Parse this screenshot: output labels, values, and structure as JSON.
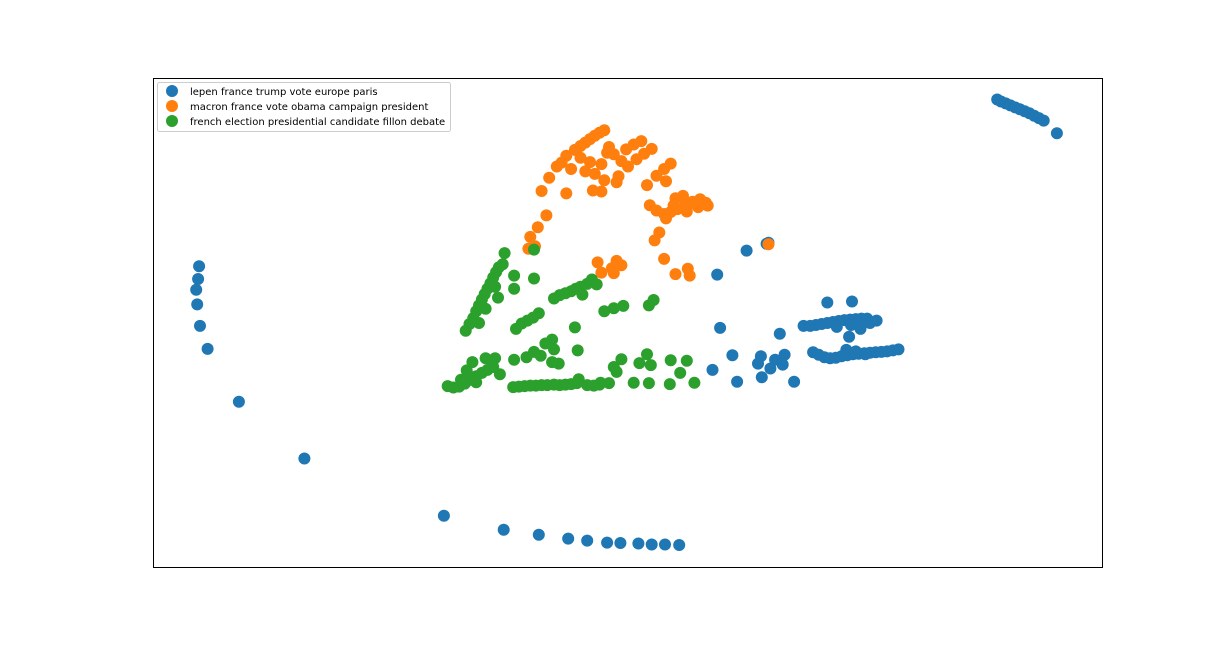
{
  "chart_data": {
    "type": "scatter",
    "title": "",
    "xlabel": "",
    "ylabel": "",
    "grid": false,
    "show_ticks": false,
    "legend_position": "top-left",
    "xlim": [
      0,
      100
    ],
    "ylim": [
      0,
      100
    ],
    "series": [
      {
        "name": "lepen france trump vote europe paris",
        "color": "#1f77b4",
        "points": [
          [
            88.9,
            95.7
          ],
          [
            89.3,
            95.3
          ],
          [
            89.8,
            94.9
          ],
          [
            90.3,
            94.5
          ],
          [
            90.8,
            94.1
          ],
          [
            91.3,
            93.7
          ],
          [
            91.8,
            93.3
          ],
          [
            92.3,
            92.9
          ],
          [
            92.8,
            92.4
          ],
          [
            93.3,
            91.9
          ],
          [
            93.8,
            91.4
          ],
          [
            95.2,
            88.8
          ],
          [
            4.8,
            61.6
          ],
          [
            4.7,
            59.0
          ],
          [
            4.5,
            56.8
          ],
          [
            4.6,
            53.8
          ],
          [
            4.9,
            49.4
          ],
          [
            5.7,
            44.7
          ],
          [
            9.0,
            33.9
          ],
          [
            15.9,
            22.3
          ],
          [
            30.6,
            10.6
          ],
          [
            36.9,
            7.7
          ],
          [
            40.6,
            6.7
          ],
          [
            43.7,
            5.9
          ],
          [
            45.7,
            5.5
          ],
          [
            47.8,
            5.1
          ],
          [
            49.2,
            5.0
          ],
          [
            51.1,
            4.9
          ],
          [
            52.5,
            4.7
          ],
          [
            53.9,
            4.7
          ],
          [
            55.4,
            4.6
          ],
          [
            59.4,
            59.9
          ],
          [
            62.5,
            64.8
          ],
          [
            64.6,
            66.2
          ],
          [
            64.8,
            66.4
          ],
          [
            58.9,
            40.4
          ],
          [
            59.7,
            49.0
          ],
          [
            61.0,
            43.4
          ],
          [
            64.0,
            43.2
          ],
          [
            66.0,
            47.8
          ],
          [
            63.7,
            41.7
          ],
          [
            65.0,
            40.7
          ],
          [
            61.5,
            38.0
          ],
          [
            64.1,
            38.9
          ],
          [
            67.5,
            38.0
          ],
          [
            71.0,
            54.2
          ],
          [
            73.6,
            54.4
          ],
          [
            73.3,
            47.2
          ],
          [
            68.5,
            49.4
          ],
          [
            69.2,
            49.4
          ],
          [
            69.8,
            49.6
          ],
          [
            70.4,
            49.8
          ],
          [
            71.0,
            50.0
          ],
          [
            71.6,
            50.2
          ],
          [
            72.2,
            50.4
          ],
          [
            72.8,
            50.6
          ],
          [
            73.4,
            50.7
          ],
          [
            74.0,
            50.8
          ],
          [
            74.6,
            50.9
          ],
          [
            75.2,
            50.9
          ],
          [
            72.0,
            49.2
          ],
          [
            73.5,
            49.6
          ],
          [
            74.5,
            48.8
          ],
          [
            75.5,
            50.0
          ],
          [
            76.2,
            50.5
          ],
          [
            69.5,
            44.0
          ],
          [
            70.1,
            43.5
          ],
          [
            70.7,
            43.0
          ],
          [
            71.3,
            42.8
          ],
          [
            71.9,
            42.9
          ],
          [
            72.5,
            43.2
          ],
          [
            73.1,
            43.4
          ],
          [
            73.7,
            43.6
          ],
          [
            74.3,
            43.7
          ],
          [
            74.9,
            43.8
          ],
          [
            75.5,
            43.9
          ],
          [
            76.1,
            44.0
          ],
          [
            76.7,
            44.1
          ],
          [
            77.3,
            44.2
          ],
          [
            77.9,
            44.4
          ],
          [
            78.5,
            44.6
          ],
          [
            73.0,
            44.5
          ],
          [
            74.0,
            44.2
          ],
          [
            75.0,
            43.6
          ],
          [
            66.5,
            43.5
          ],
          [
            65.5,
            42.5
          ],
          [
            66.3,
            41.5
          ]
        ]
      },
      {
        "name": "macron france vote obama campaign president",
        "color": "#ff7f0e",
        "points": [
          [
            44.4,
            85.4
          ],
          [
            45.0,
            86.2
          ],
          [
            45.5,
            86.9
          ],
          [
            46.0,
            87.6
          ],
          [
            46.5,
            88.3
          ],
          [
            47.0,
            88.9
          ],
          [
            47.5,
            89.4
          ],
          [
            43.0,
            82.8
          ],
          [
            42.5,
            82.0
          ],
          [
            43.5,
            84.2
          ],
          [
            44.0,
            81.5
          ],
          [
            45.5,
            81.0
          ],
          [
            46.5,
            80.5
          ],
          [
            47.2,
            82.5
          ],
          [
            46.0,
            82.9
          ],
          [
            45.0,
            83.8
          ],
          [
            47.8,
            84.8
          ],
          [
            39.7,
            67.6
          ],
          [
            40.5,
            69.6
          ],
          [
            41.4,
            72.0
          ],
          [
            40.2,
            65.7
          ],
          [
            39.5,
            65.2
          ],
          [
            40.9,
            77.0
          ],
          [
            41.7,
            79.7
          ],
          [
            43.5,
            76.5
          ],
          [
            46.3,
            77.1
          ],
          [
            47.2,
            76.9
          ],
          [
            47.5,
            79.2
          ],
          [
            48.8,
            78.8
          ],
          [
            48.0,
            86.0
          ],
          [
            48.5,
            84.5
          ],
          [
            49.3,
            83.1
          ],
          [
            49.0,
            80.0
          ],
          [
            49.8,
            85.5
          ],
          [
            50.6,
            86.5
          ],
          [
            51.4,
            87.2
          ],
          [
            50.0,
            82.0
          ],
          [
            50.9,
            83.5
          ],
          [
            51.7,
            84.6
          ],
          [
            52.5,
            85.6
          ],
          [
            52.0,
            78.2
          ],
          [
            53.0,
            80.1
          ],
          [
            53.8,
            81.5
          ],
          [
            54.5,
            82.6
          ],
          [
            54.0,
            79.0
          ],
          [
            52.3,
            74.1
          ],
          [
            53.0,
            73.0
          ],
          [
            53.8,
            72.3
          ],
          [
            54.5,
            72.7
          ],
          [
            55.2,
            73.3
          ],
          [
            56.0,
            74.1
          ],
          [
            56.8,
            74.8
          ],
          [
            57.6,
            75.3
          ],
          [
            55.0,
            75.5
          ],
          [
            55.8,
            76.0
          ],
          [
            56.6,
            74.5
          ],
          [
            57.4,
            73.7
          ],
          [
            58.2,
            74.6
          ],
          [
            54.0,
            71.4
          ],
          [
            56.2,
            72.8
          ],
          [
            54.8,
            74.0
          ],
          [
            53.3,
            68.5
          ],
          [
            52.8,
            66.9
          ],
          [
            53.8,
            63.1
          ],
          [
            55.0,
            60.0
          ],
          [
            56.3,
            61.1
          ],
          [
            56.5,
            59.7
          ],
          [
            58.4,
            74.0
          ],
          [
            46.8,
            62.4
          ],
          [
            47.2,
            60.3
          ],
          [
            48.3,
            61.2
          ],
          [
            48.8,
            62.7
          ],
          [
            49.3,
            61.8
          ],
          [
            48.5,
            60.2
          ],
          [
            64.8,
            66.1
          ]
        ]
      },
      {
        "name": "french election presidential candidate fillon debate",
        "color": "#2ca02c",
        "points": [
          [
            32.9,
            48.4
          ],
          [
            33.3,
            49.8
          ],
          [
            33.7,
            51.0
          ],
          [
            34.0,
            52.4
          ],
          [
            34.3,
            53.6
          ],
          [
            34.6,
            54.8
          ],
          [
            34.9,
            55.9
          ],
          [
            35.2,
            57.0
          ],
          [
            35.5,
            58.1
          ],
          [
            35.8,
            59.3
          ],
          [
            36.1,
            60.4
          ],
          [
            36.4,
            61.4
          ],
          [
            36.8,
            62.0
          ],
          [
            34.3,
            50.0
          ],
          [
            35.0,
            52.9
          ],
          [
            36.0,
            57.4
          ],
          [
            38.0,
            59.7
          ],
          [
            38.0,
            57.0
          ],
          [
            36.3,
            55.2
          ],
          [
            37.0,
            64.3
          ],
          [
            40.1,
            59.1
          ],
          [
            40.1,
            65.0
          ],
          [
            31.0,
            37.1
          ],
          [
            31.6,
            36.8
          ],
          [
            32.2,
            37.0
          ],
          [
            32.8,
            37.6
          ],
          [
            33.4,
            38.4
          ],
          [
            34.0,
            39.1
          ],
          [
            34.6,
            39.8
          ],
          [
            35.2,
            40.4
          ],
          [
            35.8,
            41.0
          ],
          [
            33.0,
            40.3
          ],
          [
            33.6,
            42.0
          ],
          [
            35.0,
            42.8
          ],
          [
            36.0,
            42.8
          ],
          [
            36.5,
            39.5
          ],
          [
            34.0,
            37.9
          ],
          [
            32.4,
            38.4
          ],
          [
            37.9,
            36.9
          ],
          [
            38.5,
            37.0
          ],
          [
            39.1,
            37.1
          ],
          [
            39.7,
            37.2
          ],
          [
            40.3,
            37.2
          ],
          [
            40.9,
            37.3
          ],
          [
            41.5,
            37.3
          ],
          [
            38.0,
            42.5
          ],
          [
            39.3,
            43.0
          ],
          [
            40.1,
            44.1
          ],
          [
            40.8,
            43.3
          ],
          [
            41.3,
            45.8
          ],
          [
            42.0,
            42.0
          ],
          [
            38.2,
            48.8
          ],
          [
            38.8,
            49.9
          ],
          [
            39.4,
            50.5
          ],
          [
            40.0,
            51.1
          ],
          [
            40.6,
            52.0
          ],
          [
            44.4,
            49.1
          ],
          [
            42.2,
            37.4
          ],
          [
            42.8,
            37.3
          ],
          [
            43.4,
            37.4
          ],
          [
            44.0,
            37.5
          ],
          [
            44.6,
            37.7
          ],
          [
            45.7,
            37.3
          ],
          [
            47.0,
            37.4
          ],
          [
            48.0,
            37.7
          ],
          [
            46.4,
            37.2
          ],
          [
            44.8,
            38.5
          ],
          [
            42.2,
            55.0
          ],
          [
            42.8,
            55.7
          ],
          [
            43.4,
            56.1
          ],
          [
            44.0,
            56.5
          ],
          [
            44.5,
            57.0
          ],
          [
            45.0,
            57.4
          ],
          [
            45.7,
            58.0
          ],
          [
            46.2,
            58.9
          ],
          [
            45.2,
            55.8
          ],
          [
            46.7,
            57.9
          ],
          [
            42.2,
            44.6
          ],
          [
            42.7,
            41.7
          ],
          [
            42.0,
            46.6
          ],
          [
            44.7,
            44.4
          ],
          [
            47.5,
            52.4
          ],
          [
            48.5,
            53.0
          ],
          [
            49.5,
            53.5
          ],
          [
            52.2,
            53.6
          ],
          [
            52.7,
            54.7
          ],
          [
            47.1,
            37.8
          ],
          [
            48.5,
            41.0
          ],
          [
            48.8,
            40.0
          ],
          [
            49.3,
            42.6
          ],
          [
            50.6,
            37.8
          ],
          [
            52.0,
            43.6
          ],
          [
            52.4,
            41.4
          ],
          [
            51.2,
            41.8
          ],
          [
            52.2,
            37.7
          ],
          [
            54.5,
            42.4
          ],
          [
            56.2,
            42.3
          ],
          [
            55.5,
            39.8
          ],
          [
            57.0,
            37.8
          ],
          [
            54.4,
            37.5
          ]
        ]
      }
    ]
  }
}
